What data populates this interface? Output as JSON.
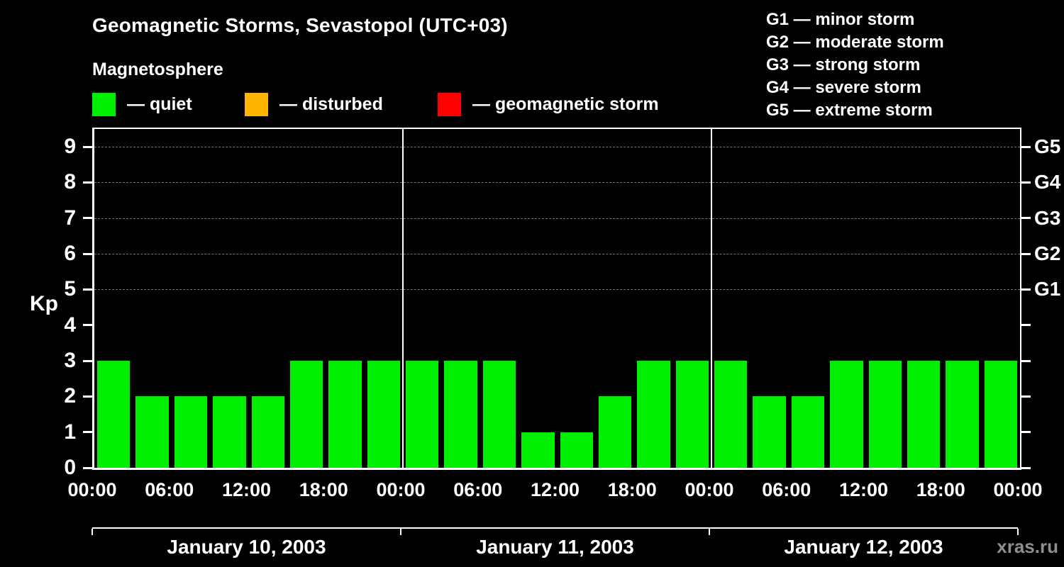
{
  "header": {
    "title": "Geomagnetic Storms, Sevastopol (UTC+03)",
    "subtitle": "Magnetosphere"
  },
  "legend": {
    "items": [
      {
        "name": "quiet",
        "label": "— quiet",
        "color": "#00ee00"
      },
      {
        "name": "disturbed",
        "label": "— disturbed",
        "color": "#ffb400"
      },
      {
        "name": "storm",
        "label": "— geomagnetic storm",
        "color": "#ff0000"
      }
    ]
  },
  "storm_scale": [
    "G1 — minor storm",
    "G2 — moderate storm",
    "G3 — strong storm",
    "G4 — severe storm",
    "G5 — extreme storm"
  ],
  "watermark": "xras.ru",
  "chart_data": {
    "type": "bar",
    "title": "Geomagnetic Storms, Sevastopol (UTC+03)",
    "ylabel": "Kp",
    "ylim": [
      0,
      9.5
    ],
    "y_ticks": [
      0,
      1,
      2,
      3,
      4,
      5,
      6,
      7,
      8,
      9
    ],
    "gridlines_at": [
      5,
      6,
      7,
      8,
      9
    ],
    "right_axis": [
      {
        "kp": 5,
        "label": "G1"
      },
      {
        "kp": 6,
        "label": "G2"
      },
      {
        "kp": 7,
        "label": "G3"
      },
      {
        "kp": 8,
        "label": "G4"
      },
      {
        "kp": 9,
        "label": "G5"
      }
    ],
    "hours_per_bar": 3,
    "total_hours": 72,
    "x_tick_hours": [
      0,
      6,
      12,
      18,
      24,
      30,
      36,
      42,
      48,
      54,
      60,
      66,
      72
    ],
    "x_tick_labels": [
      "00:00",
      "06:00",
      "12:00",
      "18:00",
      "00:00",
      "06:00",
      "12:00",
      "18:00",
      "00:00",
      "06:00",
      "12:00",
      "18:00",
      "00:00"
    ],
    "days": [
      {
        "label": "January 10, 2003",
        "values": [
          3,
          2,
          2,
          2,
          2,
          3,
          3,
          3
        ]
      },
      {
        "label": "January 11, 2003",
        "values": [
          3,
          3,
          3,
          1,
          1,
          2,
          3,
          3
        ]
      },
      {
        "label": "January 12, 2003",
        "values": [
          3,
          2,
          2,
          3,
          3,
          3,
          3,
          3
        ]
      }
    ],
    "colors": {
      "quiet": "#00ee00",
      "disturbed": "#ffb400",
      "storm": "#ff0000"
    },
    "thresholds": {
      "disturbed_kp": 4,
      "storm_kp": 5
    }
  }
}
